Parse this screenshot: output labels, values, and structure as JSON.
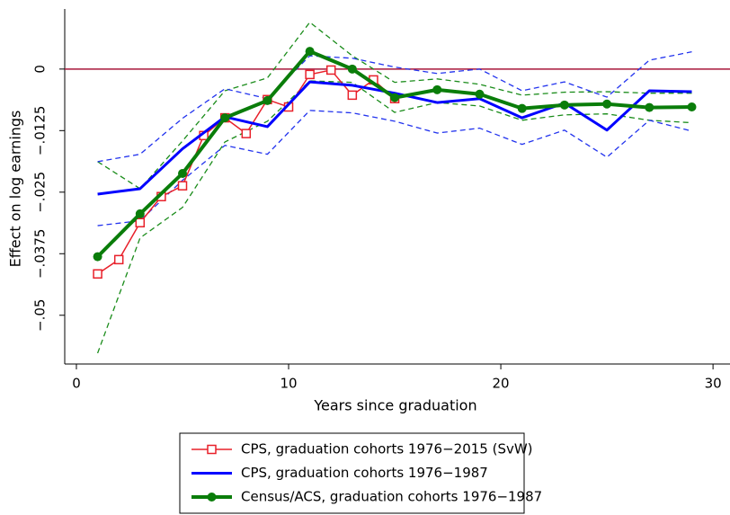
{
  "chart_data": {
    "type": "line",
    "x_label": "Years since graduation",
    "y_label": "Effect on log earnings",
    "xlim": [
      -0.55,
      30.8
    ],
    "ylim": [
      -0.0599,
      0.0122
    ],
    "xticks": [
      0,
      10,
      20,
      30
    ],
    "yticks": [
      0,
      {
        "value": -0.0125,
        "label": "−.0125"
      },
      {
        "value": -0.025,
        "label": "−.025"
      },
      {
        "value": -0.0375,
        "label": "−.0375"
      },
      {
        "value": -0.05,
        "label": "−.05"
      }
    ],
    "yline": 0,
    "yline_color": "#a8163a",
    "series": [
      {
        "color": "#1a8c1a",
        "style": "dashed",
        "x": [
          1,
          3,
          5,
          7,
          9,
          11,
          13,
          15,
          17,
          19,
          21,
          23,
          25,
          27,
          29
        ],
        "values": [
          -0.0188,
          -0.0243,
          -0.0146,
          -0.0044,
          -0.0018,
          0.0095,
          0.0027,
          -0.0027,
          -0.002,
          -0.0031,
          -0.0053,
          -0.0047,
          -0.0046,
          -0.0049,
          -0.0049
        ]
      },
      {
        "color": "#1a8c1a",
        "style": "dashed",
        "x": [
          1,
          3,
          5,
          7,
          9,
          11,
          13,
          15,
          17,
          19,
          21,
          23,
          25,
          27,
          29
        ],
        "values": [
          -0.0577,
          -0.0343,
          -0.0281,
          -0.0148,
          -0.0106,
          -0.0024,
          -0.0027,
          -0.0088,
          -0.0068,
          -0.0075,
          -0.0104,
          -0.0093,
          -0.0091,
          -0.0104,
          -0.0109
        ]
      },
      {
        "color": "#2233ee",
        "style": "dashed",
        "x": [
          1,
          3,
          5,
          7,
          9,
          11,
          13,
          15,
          17,
          19,
          21,
          23,
          25,
          27,
          29
        ],
        "values": [
          -0.0188,
          -0.0173,
          -0.01,
          -0.004,
          -0.006,
          0.0027,
          0.0022,
          0.0004,
          -0.0009,
          0,
          -0.0044,
          -0.0026,
          -0.0057,
          0.0018,
          0.0035
        ]
      },
      {
        "color": "#2233ee",
        "style": "dashed",
        "x": [
          1,
          3,
          5,
          7,
          9,
          11,
          13,
          15,
          17,
          19,
          21,
          23,
          25,
          27,
          29
        ],
        "values": [
          -0.0318,
          -0.0308,
          -0.0226,
          -0.0155,
          -0.0173,
          -0.0084,
          -0.0089,
          -0.0106,
          -0.013,
          -0.012,
          -0.0153,
          -0.0124,
          -0.0179,
          -0.0104,
          -0.0126
        ]
      },
      {
        "name": "CPS, graduation cohorts 1976−2015 (SvW)",
        "color": "#e8202a",
        "style": "solid",
        "marker": "square",
        "width": 1.5,
        "x": [
          1,
          2,
          3,
          4,
          5,
          6,
          7,
          8,
          9,
          10,
          11,
          12,
          13,
          14,
          15
        ],
        "values": [
          -0.0416,
          -0.0387,
          -0.0312,
          -0.0259,
          -0.0237,
          -0.0135,
          -0.0099,
          -0.0131,
          -0.0062,
          -0.0077,
          -0.0011,
          -0.0002,
          -0.0053,
          -0.0022,
          -0.006
        ]
      },
      {
        "name": "CPS, graduation cohorts 1976−1987",
        "color": "#0000ff",
        "style": "solid",
        "width": 3,
        "x": [
          1,
          3,
          5,
          7,
          9,
          11,
          13,
          15,
          17,
          19,
          21,
          23,
          25,
          27,
          29
        ],
        "values": [
          -0.0254,
          -0.0243,
          -0.0162,
          -0.0097,
          -0.0117,
          -0.0026,
          -0.0033,
          -0.0049,
          -0.0068,
          -0.006,
          -0.0099,
          -0.0069,
          -0.0124,
          -0.0044,
          -0.0046
        ]
      },
      {
        "name": "Census/ACS, graduation cohorts 1976−1987",
        "color": "#0a7d0a",
        "style": "solid",
        "marker": "circle",
        "width": 4,
        "x": [
          1,
          3,
          5,
          7,
          9,
          11,
          13,
          15,
          17,
          19,
          21,
          23,
          25,
          27,
          29
        ],
        "values": [
          -0.0381,
          -0.0294,
          -0.0212,
          -0.0099,
          -0.0064,
          0.0036,
          0,
          -0.0058,
          -0.0042,
          -0.0051,
          -0.008,
          -0.0073,
          -0.0071,
          -0.0078,
          -0.0077
        ]
      }
    ]
  }
}
